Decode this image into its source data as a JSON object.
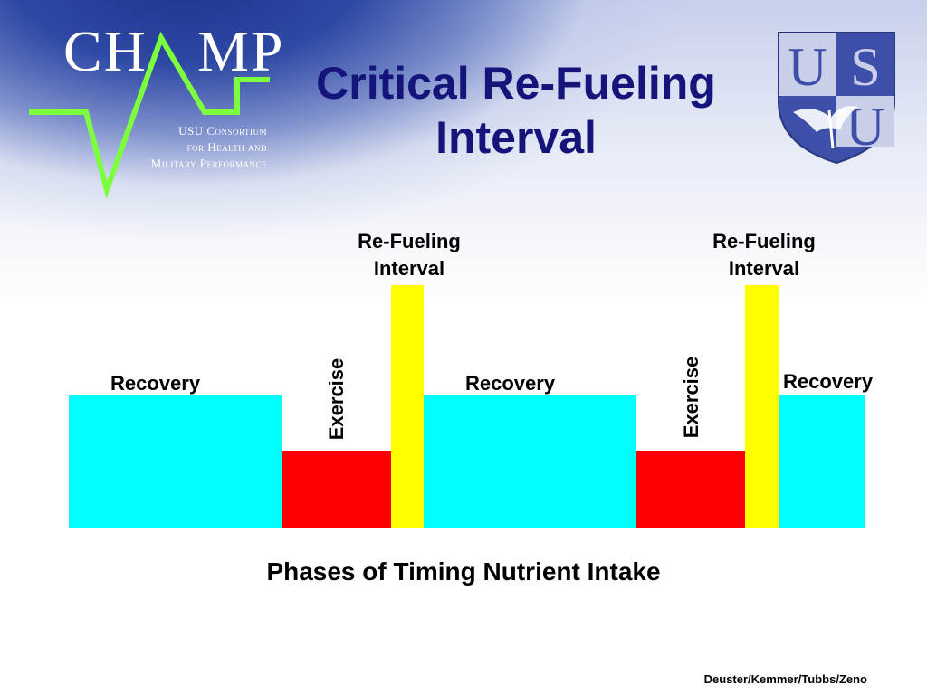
{
  "title": {
    "line1": "Critical Re-Fueling",
    "line2": "Interval"
  },
  "logo": {
    "name": "CHAMP",
    "name_left": "CH",
    "name_right": "MP",
    "subtitle_line1": "USU Consortium",
    "subtitle_line2": "for Health and",
    "subtitle_line3": "Military Performance"
  },
  "institution_logo": {
    "letters": "USU",
    "icon": "usu-shield-eagle-icon"
  },
  "diagram": {
    "phases": [
      {
        "type": "recovery",
        "label": "Recovery"
      },
      {
        "type": "exercise",
        "label": "Exercise"
      },
      {
        "type": "refuel",
        "label_line1": "Re-Fueling",
        "label_line2": "Interval"
      },
      {
        "type": "recovery",
        "label": "Recovery"
      },
      {
        "type": "exercise",
        "label": "Exercise"
      },
      {
        "type": "refuel",
        "label_line1": "Re-Fueling",
        "label_line2": "Interval"
      },
      {
        "type": "recovery",
        "label": "Recovery"
      }
    ],
    "colors": {
      "recovery": "#00ffff",
      "exercise": "#ff0000",
      "refuel": "#ffff00"
    },
    "caption": "Phases of Timing Nutrient Intake"
  },
  "credit": "Deuster/Kemmer/Tubbs/Zeno"
}
